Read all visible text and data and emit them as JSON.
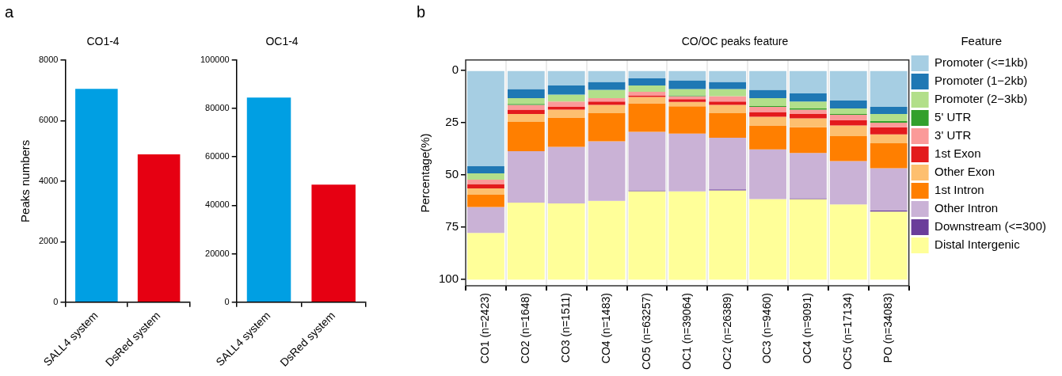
{
  "chart_data": [
    {
      "type": "bar",
      "title": "CO1-4",
      "ylabel": "Peaks numbers",
      "annotations": [
        "a"
      ],
      "categories": [
        "SALL4 system",
        "DsRed system"
      ],
      "values": [
        7050,
        4880
      ],
      "colors": [
        "#009fe3",
        "#e60012"
      ],
      "ylim": [
        0,
        8000
      ],
      "yticks": [
        0,
        2000,
        4000,
        6000,
        8000
      ]
    },
    {
      "type": "bar",
      "title": "OC1-4",
      "categories": [
        "SALL4 system",
        "DsRed system"
      ],
      "values": [
        84500,
        48500
      ],
      "colors": [
        "#009fe3",
        "#e60012"
      ],
      "ylim": [
        0,
        100000
      ],
      "yticks": [
        0,
        20000,
        40000,
        60000,
        80000,
        100000
      ]
    },
    {
      "type": "bar",
      "title": "CO/OC peaks feature",
      "ylabel": "Percentage(%)",
      "annotations": [
        "b"
      ],
      "stacked": true,
      "grid": "x",
      "legend": "right",
      "legend_title": "Feature",
      "ylim": [
        103,
        -5
      ],
      "yticks": [
        0,
        25,
        50,
        75,
        100
      ],
      "categories": [
        "CO1 (n=2423)",
        "CO2 (n=1648)",
        "CO3 (n=1511)",
        "CO4 (n=1483)",
        "CO5 (n=63257)",
        "OC1 (n=39064)",
        "OC2 (n=26389)",
        "OC3 (n=9460)",
        "OC4 (n=9091)",
        "OC5 (n=17134)",
        "PO (n=34083)"
      ],
      "series": [
        {
          "name": "Promoter (<=1kb)",
          "color": "#a6cee3",
          "values": [
            45.8,
            8.9,
            7.2,
            5.5,
            3.8,
            4.7,
            5.5,
            9.3,
            11.0,
            14.4,
            17.4
          ]
        },
        {
          "name": "Promoter (1−2kb)",
          "color": "#1f78b4",
          "values": [
            3.4,
            4.3,
            4.3,
            3.8,
            3.4,
            4.2,
            3.4,
            3.9,
            3.9,
            3.8,
            3.4
          ]
        },
        {
          "name": "Promoter (2−3kb)",
          "color": "#b2df8a",
          "values": [
            3.0,
            2.8,
            3.4,
            3.9,
            3.0,
            3.0,
            3.4,
            3.8,
            3.3,
            2.6,
            3.4
          ]
        },
        {
          "name": "5' UTR",
          "color": "#33a02c",
          "values": [
            0,
            0.5,
            0,
            0,
            0,
            0.4,
            0,
            0.4,
            0.5,
            0.4,
            0.8
          ]
        },
        {
          "name": "3' UTR",
          "color": "#fb9a99",
          "values": [
            2.1,
            2.2,
            2.5,
            1.7,
            1.7,
            1.4,
            2.6,
            2.5,
            2.1,
            2.6,
            2.2
          ]
        },
        {
          "name": "1st Exon",
          "color": "#e31a1c",
          "values": [
            2.1,
            2.1,
            1.3,
            1.6,
            0.8,
            1.3,
            1.6,
            2.2,
            2.1,
            2.5,
            3.4
          ]
        },
        {
          "name": "Other Exon",
          "color": "#fdbf6f",
          "values": [
            3.0,
            3.8,
            3.8,
            3.9,
            3.0,
            2.1,
            3.9,
            4.2,
            4.3,
            5.1,
            4.2
          ]
        },
        {
          "name": "1st Intron",
          "color": "#ff7f00",
          "values": [
            5.9,
            14.0,
            14.0,
            13.5,
            13.6,
            13.1,
            11.8,
            11.5,
            12.3,
            11.9,
            11.9
          ]
        },
        {
          "name": "Other Intron",
          "color": "#cab2d6",
          "values": [
            12.4,
            24.6,
            27.1,
            28.5,
            28.0,
            27.6,
            24.7,
            23.7,
            21.6,
            20.8,
            20.3
          ]
        },
        {
          "name": "Downstream (<=300)",
          "color": "#6a3d9a",
          "values": [
            0,
            0,
            0,
            0,
            0.4,
            0,
            0.4,
            0,
            0.4,
            0,
            0.5
          ]
        },
        {
          "name": "Distal Intergenic",
          "color": "#ffff99",
          "values": [
            22.3,
            36.8,
            36.4,
            37.6,
            42.3,
            42.3,
            42.7,
            38.5,
            38.5,
            35.9,
            32.5
          ]
        }
      ]
    }
  ]
}
